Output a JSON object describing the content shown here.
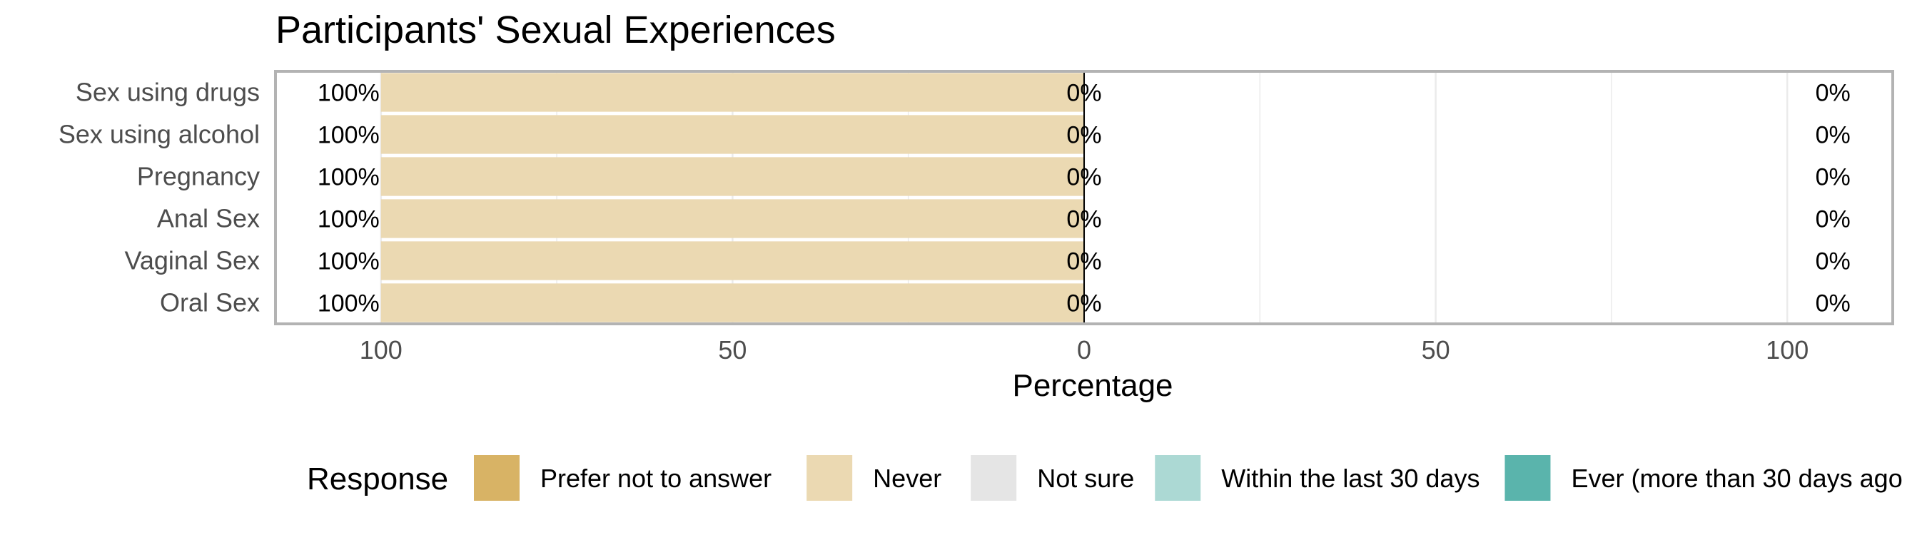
{
  "chart_data": {
    "type": "bar",
    "orientation": "horizontal-diverging",
    "title": "Participants' Sexual Experiences",
    "xlabel": "Percentage",
    "ylabel": "",
    "xlim": [
      -115,
      115
    ],
    "xticks": [
      -100,
      -50,
      0,
      50,
      100
    ],
    "xtick_labels": [
      "100",
      "50",
      "0",
      "50",
      "100"
    ],
    "grid": true,
    "categories": [
      "Sex using drugs",
      "Sex using alcohol",
      "Pregnancy",
      "Anal Sex",
      "Vaginal Sex",
      "Oral Sex"
    ],
    "series": [
      {
        "name": "Prefer not to answer",
        "color": "#D8B365",
        "values": [
          0,
          0,
          0,
          0,
          0,
          0
        ]
      },
      {
        "name": "Never",
        "color": "#EBD9B2",
        "values": [
          100,
          100,
          100,
          100,
          100,
          100
        ]
      },
      {
        "name": "Not sure",
        "color": "#E5E5E5",
        "values": [
          0,
          0,
          0,
          0,
          0,
          0
        ]
      },
      {
        "name": "Within the last 30 days",
        "color": "#ACD9D4",
        "values": [
          0,
          0,
          0,
          0,
          0,
          0
        ]
      },
      {
        "name": "Ever (more than 30 days ago",
        "color": "#5AB4AC",
        "values": [
          0,
          0,
          0,
          0,
          0,
          0
        ]
      }
    ],
    "left_labels": [
      "100%",
      "100%",
      "100%",
      "100%",
      "100%",
      "100%"
    ],
    "center_labels": [
      "0%",
      "0%",
      "0%",
      "0%",
      "0%",
      "0%"
    ],
    "right_labels": [
      "0%",
      "0%",
      "0%",
      "0%",
      "0%",
      "0%"
    ],
    "legend": {
      "title": "Response",
      "position": "bottom"
    }
  }
}
